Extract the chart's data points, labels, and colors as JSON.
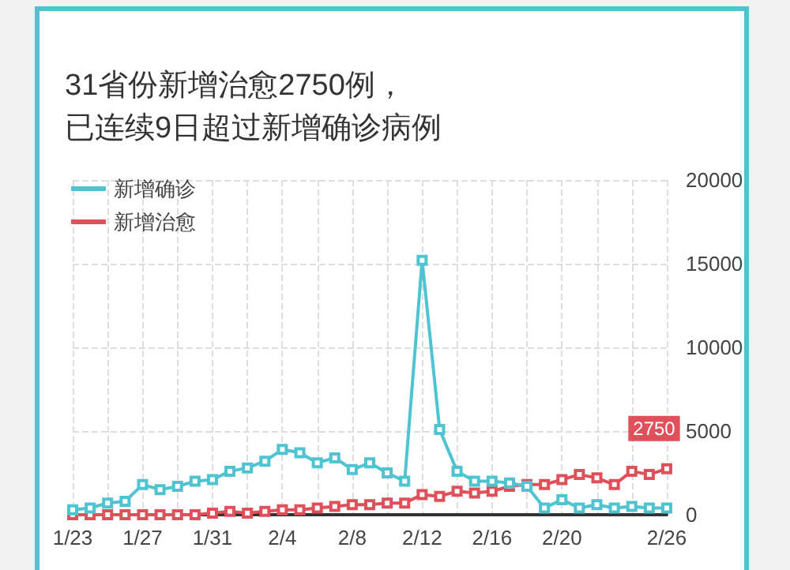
{
  "chart_data": {
    "type": "line",
    "title": "31省份新增治愈2750例，已连续9日超过新增确诊病例",
    "categories": [
      "1/23",
      null,
      null,
      null,
      "1/27",
      null,
      null,
      null,
      "1/31",
      null,
      null,
      null,
      "2/4",
      null,
      null,
      null,
      "2/8",
      null,
      null,
      null,
      "2/12",
      null,
      null,
      null,
      "2/16",
      null,
      null,
      null,
      "2/20",
      null,
      null,
      null,
      null,
      null,
      "2/26"
    ],
    "series": [
      {
        "name": "新增确诊",
        "color": "#4fc3d0",
        "values": [
          300,
          400,
          700,
          800,
          1800,
          1500,
          1700,
          2000,
          2100,
          2600,
          2800,
          3200,
          3900,
          3700,
          3100,
          3400,
          2700,
          3100,
          2500,
          2000,
          15200,
          5100,
          2600,
          2000,
          2000,
          1900,
          1700,
          400,
          900,
          400,
          600,
          400,
          500,
          400,
          400
        ]
      },
      {
        "name": "新增治愈",
        "color": "#e0505a",
        "values": [
          0,
          0,
          0,
          0,
          0,
          0,
          0,
          0,
          100,
          200,
          100,
          200,
          300,
          300,
          400,
          500,
          600,
          600,
          700,
          700,
          1200,
          1100,
          1400,
          1300,
          1400,
          1700,
          1800,
          1800,
          2100,
          2400,
          2200,
          1800,
          2600,
          2400,
          2750
        ],
        "value_labels": [
          null,
          null,
          null,
          null,
          null,
          null,
          null,
          null,
          null,
          null,
          null,
          null,
          null,
          null,
          null,
          null,
          null,
          null,
          null,
          null,
          null,
          null,
          null,
          null,
          null,
          null,
          null,
          null,
          null,
          null,
          null,
          null,
          null,
          null,
          "2750"
        ]
      }
    ],
    "ylim": [
      0,
      20000
    ],
    "yticks": [
      0,
      5000,
      10000,
      15000,
      20000
    ],
    "grid": true,
    "legend": "top left",
    "marker": "square",
    "line_style": "solid"
  }
}
